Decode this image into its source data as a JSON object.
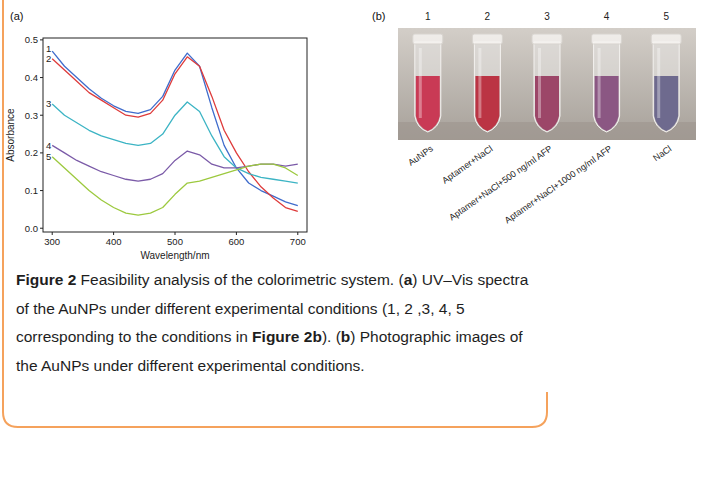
{
  "panels": [
    "(a)",
    "(b)"
  ],
  "chart_data": {
    "type": "line",
    "xlabel": "Wavelength/nm",
    "ylabel": "Absorbance",
    "x": [
      300,
      320,
      340,
      360,
      380,
      400,
      420,
      440,
      460,
      480,
      500,
      520,
      540,
      560,
      580,
      600,
      620,
      640,
      660,
      680,
      700
    ],
    "series": [
      {
        "name": "1",
        "color": "#3f6ccc",
        "values": [
          0.47,
          0.43,
          0.4,
          0.37,
          0.345,
          0.325,
          0.31,
          0.305,
          0.315,
          0.35,
          0.42,
          0.465,
          0.43,
          0.32,
          0.22,
          0.16,
          0.12,
          0.1,
          0.085,
          0.07,
          0.06
        ]
      },
      {
        "name": "2",
        "color": "#de3b3b",
        "values": [
          0.45,
          0.42,
          0.39,
          0.36,
          0.34,
          0.32,
          0.3,
          0.295,
          0.305,
          0.34,
          0.41,
          0.455,
          0.43,
          0.35,
          0.26,
          0.2,
          0.15,
          0.11,
          0.08,
          0.055,
          0.045
        ]
      },
      {
        "name": "3",
        "color": "#3cb4c4",
        "values": [
          0.33,
          0.3,
          0.28,
          0.26,
          0.245,
          0.235,
          0.225,
          0.22,
          0.225,
          0.25,
          0.3,
          0.335,
          0.31,
          0.245,
          0.19,
          0.16,
          0.145,
          0.135,
          0.13,
          0.125,
          0.12
        ]
      },
      {
        "name": "4",
        "color": "#7b5ba8",
        "values": [
          0.22,
          0.2,
          0.18,
          0.165,
          0.15,
          0.14,
          0.13,
          0.125,
          0.13,
          0.145,
          0.18,
          0.205,
          0.195,
          0.17,
          0.16,
          0.16,
          0.165,
          0.17,
          0.17,
          0.165,
          0.17
        ]
      },
      {
        "name": "5",
        "color": "#9cc93e",
        "values": [
          0.19,
          0.16,
          0.13,
          0.1,
          0.075,
          0.055,
          0.04,
          0.035,
          0.04,
          0.055,
          0.09,
          0.12,
          0.125,
          0.135,
          0.145,
          0.155,
          0.165,
          0.17,
          0.17,
          0.16,
          0.14
        ]
      }
    ],
    "xlim": [
      285,
      715
    ],
    "xticks": [
      300,
      400,
      500,
      600,
      700
    ],
    "ylim": [
      -0.01,
      0.505
    ],
    "yticks": [
      {
        "value": 0,
        "label": "0.0"
      },
      0.1,
      0.2,
      0.3,
      0.4,
      0.5
    ],
    "grid": false
  },
  "photo": {
    "numbers": [
      "1",
      "2",
      "3",
      "4",
      "5"
    ],
    "labels": [
      "AuNPs",
      "Aptamer+NaCl",
      "Aptamer+NaCl+500 ng/ml AFP",
      "Aptamer+NaCl+1000 ng/ml AFP",
      "NaCl"
    ],
    "tube_colors": [
      "#c93a55",
      "#bb3444",
      "#9c4668",
      "#8b5783",
      "#6e6a8e"
    ]
  },
  "caption": {
    "runs": [
      {
        "text": "Figure 2",
        "bold": true
      },
      {
        "text": " Feasibility analysis of the colorimetric system. (",
        "bold": false
      },
      {
        "text": "a",
        "bold": true
      },
      {
        "text": ") UV–Vis spectra of the AuNPs under different experimental conditions (1, 2 ,3, 4, 5 corresponding to the conditions in ",
        "bold": false
      },
      {
        "text": "Figure 2b",
        "bold": true
      },
      {
        "text": "). (",
        "bold": false
      },
      {
        "text": "b",
        "bold": true
      },
      {
        "text": ") Photographic images of the AuNPs under different experimental conditions.",
        "bold": false
      }
    ]
  }
}
